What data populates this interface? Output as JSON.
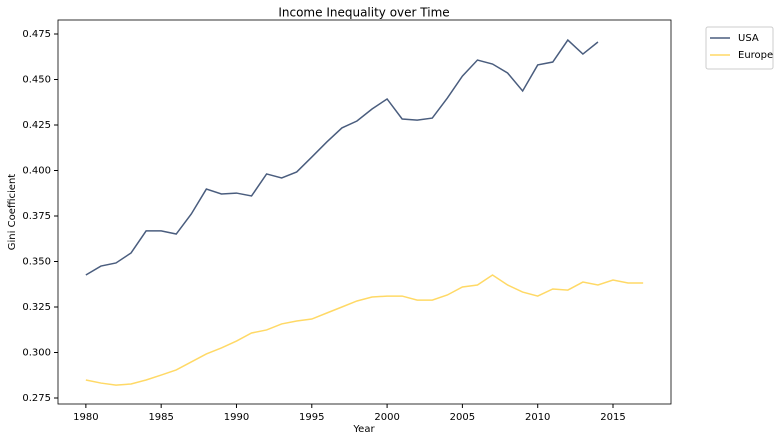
{
  "chart_data": {
    "type": "line",
    "title": "Income Inequality over Time",
    "x_label": "Year",
    "y_label": "Gini Coefficient",
    "x": [
      1980,
      1981,
      1982,
      1983,
      1984,
      1985,
      1986,
      1987,
      1988,
      1989,
      1990,
      1991,
      1992,
      1993,
      1994,
      1995,
      1996,
      1997,
      1998,
      1999,
      2000,
      2001,
      2002,
      2003,
      2004,
      2005,
      2006,
      2007,
      2008,
      2009,
      2010,
      2011,
      2012,
      2013,
      2014,
      2015,
      2016,
      2017
    ],
    "series": [
      {
        "name": "USA",
        "color": "#4a5d7e",
        "values": [
          0.3426,
          0.3475,
          0.3492,
          0.3547,
          0.3668,
          0.3668,
          0.3651,
          0.3761,
          0.3898,
          0.3871,
          0.3876,
          0.386,
          0.3981,
          0.3959,
          0.3992,
          0.4074,
          0.4157,
          0.4234,
          0.4272,
          0.4338,
          0.4393,
          0.4283,
          0.4277,
          0.4288,
          0.4398,
          0.4519,
          0.4607,
          0.4585,
          0.4536,
          0.4437,
          0.458,
          0.4596,
          0.4717,
          0.464,
          0.4706,
          null,
          null,
          null
        ]
      },
      {
        "name": "Europe",
        "color": "#ffd966",
        "values": [
          0.2849,
          0.2832,
          0.2821,
          0.2827,
          0.2849,
          0.2876,
          0.2904,
          0.2948,
          0.2992,
          0.3025,
          0.3063,
          0.3107,
          0.3124,
          0.3157,
          0.3173,
          0.3184,
          0.3217,
          0.325,
          0.3283,
          0.3305,
          0.331,
          0.331,
          0.3288,
          0.3288,
          0.3316,
          0.336,
          0.3371,
          0.3426,
          0.3371,
          0.3332,
          0.331,
          0.3349,
          0.3343,
          0.3387,
          0.3371,
          0.3398,
          0.3382,
          0.3382
        ]
      }
    ],
    "xlim": [
      1978.15,
      2018.85
    ],
    "xticks": [
      1980,
      1985,
      1990,
      1995,
      2000,
      2005,
      2010,
      2015
    ],
    "ylim": [
      0.2717,
      0.4827
    ],
    "yticks": [
      0.275,
      {
        "value": 0.3,
        "label": "0.300"
      },
      0.325,
      {
        "value": 0.35,
        "label": "0.350"
      },
      0.375,
      {
        "value": 0.4,
        "label": "0.400"
      },
      0.425,
      {
        "value": 0.45,
        "label": "0.450"
      },
      0.475
    ],
    "grid": false,
    "legend": "outside upper right"
  }
}
